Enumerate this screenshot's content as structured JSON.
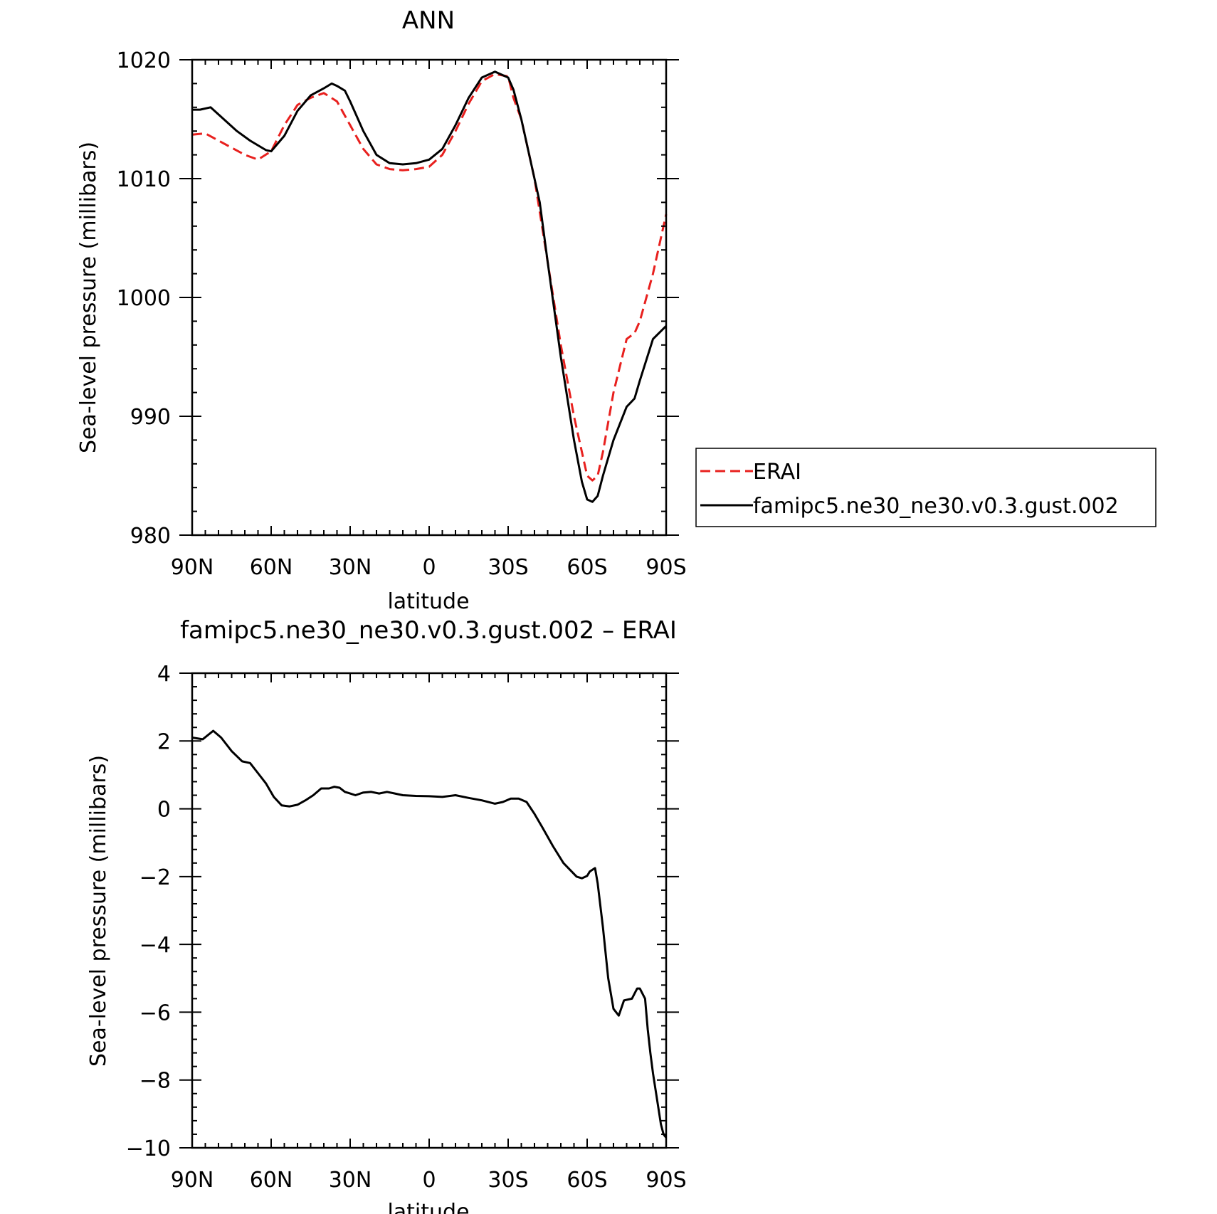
{
  "chart_data": [
    {
      "type": "line",
      "title": "ANN",
      "xlabel": "latitude",
      "ylabel": "Sea-level pressure (millibars)",
      "x_ticks": [
        90,
        60,
        30,
        0,
        -30,
        -60,
        -90
      ],
      "x_tick_labels": [
        "90N",
        "60N",
        "30N",
        "0",
        "30S",
        "60S",
        "90S"
      ],
      "xlim": [
        90,
        -90
      ],
      "ylim": [
        980,
        1020
      ],
      "y_ticks": [
        980,
        990,
        1000,
        1010,
        1020
      ],
      "y_tick_labels": [
        "980",
        "990",
        "1000",
        "1010",
        "1020"
      ],
      "grid": false,
      "legend_position": "right",
      "series": [
        {
          "name": "ERAI",
          "color": "#e8201e",
          "dash": "dashed",
          "x": [
            90,
            85,
            80,
            75,
            70,
            65,
            60,
            55,
            50,
            45,
            40,
            35,
            30,
            25,
            20,
            15,
            10,
            5,
            0,
            -5,
            -10,
            -15,
            -20,
            -25,
            -30,
            -32,
            -35,
            -40,
            -45,
            -50,
            -55,
            -58,
            -60,
            -62,
            -64,
            -66,
            -70,
            -75,
            -78,
            -80,
            -85,
            -90
          ],
          "y": [
            1013.7,
            1013.8,
            1013.2,
            1012.6,
            1012.0,
            1011.6,
            1012.3,
            1014.5,
            1016.2,
            1016.8,
            1017.2,
            1016.5,
            1014.5,
            1012.5,
            1011.2,
            1010.8,
            1010.7,
            1010.8,
            1011.0,
            1012.0,
            1014.0,
            1016.3,
            1018.2,
            1018.8,
            1018.6,
            1016.8,
            1015.0,
            1010.0,
            1003.0,
            996.0,
            990.0,
            987.0,
            985.0,
            984.6,
            985.0,
            987.0,
            992.0,
            996.5,
            997.0,
            998.0,
            1002.0,
            1007.0
          ]
        },
        {
          "name": "famipc5.ne30_ne30.v0.3.gust.002",
          "color": "#000000",
          "dash": "solid",
          "x": [
            90,
            87,
            83,
            78,
            73,
            68,
            62,
            60,
            55,
            50,
            45,
            40,
            37,
            35,
            32,
            30,
            25,
            20,
            15,
            10,
            5,
            0,
            -5,
            -10,
            -15,
            -20,
            -25,
            -30,
            -32,
            -35,
            -38,
            -42,
            -45,
            -50,
            -55,
            -58,
            -60,
            -62,
            -64,
            -66,
            -70,
            -75,
            -78,
            -80,
            -85,
            -90
          ],
          "y": [
            1015.8,
            1015.8,
            1016.0,
            1015.0,
            1014.0,
            1013.2,
            1012.4,
            1012.3,
            1013.6,
            1015.7,
            1017.0,
            1017.6,
            1018.0,
            1017.8,
            1017.4,
            1016.5,
            1014.0,
            1012.0,
            1011.3,
            1011.2,
            1011.3,
            1011.6,
            1012.5,
            1014.5,
            1016.8,
            1018.5,
            1019.0,
            1018.5,
            1017.5,
            1015.0,
            1012.0,
            1008.0,
            1003.0,
            995.0,
            988.0,
            984.5,
            983.0,
            982.8,
            983.3,
            985.0,
            988.0,
            990.8,
            991.5,
            993.0,
            996.5,
            997.6
          ]
        }
      ]
    },
    {
      "type": "line",
      "title": "famipc5.ne30_ne30.v0.3.gust.002 – ERAI",
      "xlabel": "latitude",
      "ylabel": "Sea-level pressure (millibars)",
      "x_ticks": [
        90,
        60,
        30,
        0,
        -30,
        -60,
        -90
      ],
      "x_tick_labels": [
        "90N",
        "60N",
        "30N",
        "0",
        "30S",
        "60S",
        "90S"
      ],
      "xlim": [
        90,
        -90
      ],
      "ylim": [
        -10,
        4
      ],
      "y_ticks": [
        -10,
        -8,
        -6,
        -4,
        -2,
        0,
        2,
        4
      ],
      "y_tick_labels": [
        "−10",
        "−8",
        "−6",
        "−4",
        "−2",
        "0",
        "2",
        "4"
      ],
      "grid": false,
      "series": [
        {
          "color": "#000000",
          "dash": "solid",
          "x": [
            90,
            86,
            82,
            79,
            75,
            71,
            68,
            65,
            62,
            59,
            56,
            53,
            50,
            47,
            44,
            41,
            38,
            36,
            34,
            32,
            30,
            28,
            25,
            22,
            19,
            16,
            13,
            10,
            5,
            0,
            -5,
            -10,
            -15,
            -20,
            -25,
            -28,
            -31,
            -34,
            -37,
            -40,
            -43,
            -47,
            -51,
            -56,
            -58,
            -60,
            -61,
            -62,
            -63,
            -64,
            -66,
            -68,
            -70,
            -72,
            -74,
            -77,
            -79,
            -80,
            -82,
            -83,
            -84,
            -85,
            -86,
            -87,
            -88,
            -89,
            -90
          ],
          "y": [
            2.1,
            2.05,
            2.3,
            2.1,
            1.7,
            1.4,
            1.35,
            1.05,
            0.75,
            0.35,
            0.1,
            0.07,
            0.12,
            0.25,
            0.4,
            0.6,
            0.6,
            0.65,
            0.62,
            0.5,
            0.45,
            0.4,
            0.48,
            0.5,
            0.45,
            0.5,
            0.45,
            0.4,
            0.38,
            0.37,
            0.35,
            0.4,
            0.32,
            0.25,
            0.15,
            0.2,
            0.3,
            0.3,
            0.2,
            -0.15,
            -0.55,
            -1.1,
            -1.6,
            -2.0,
            -2.05,
            -1.98,
            -1.85,
            -1.8,
            -1.75,
            -2.2,
            -3.5,
            -5.0,
            -5.9,
            -6.1,
            -5.65,
            -5.6,
            -5.3,
            -5.3,
            -5.6,
            -6.5,
            -7.2,
            -7.8,
            -8.3,
            -8.8,
            -9.3,
            -9.6,
            -9.7
          ]
        }
      ]
    }
  ]
}
